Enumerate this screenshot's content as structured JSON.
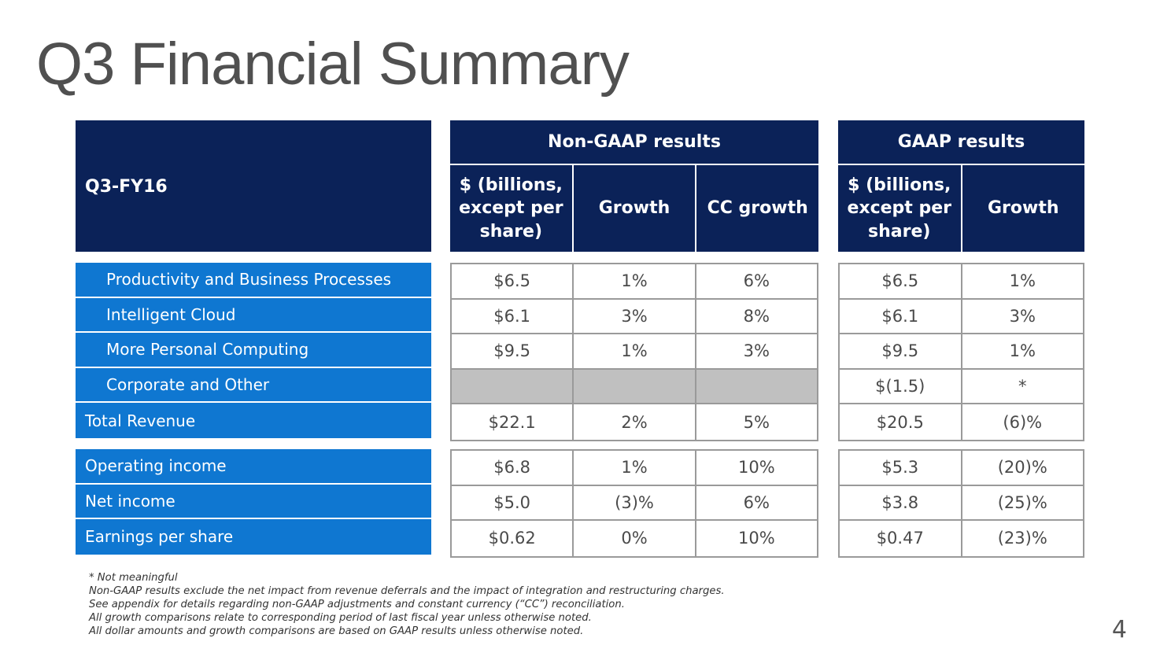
{
  "title": "Q3 Financial Summary",
  "header": {
    "period": "Q3-FY16",
    "non_gaap": {
      "title": "Non-GAAP results",
      "columns": [
        "$ (billions, except per share)",
        "Growth",
        "CC growth"
      ]
    },
    "gaap": {
      "title": "GAAP results",
      "columns": [
        "$ (billions, except per share)",
        "Growth"
      ]
    }
  },
  "revenue_rows": [
    {
      "label": "Productivity and Business Processes",
      "non_gaap": [
        "$6.5",
        "1%",
        "6%"
      ],
      "gaap": [
        "$6.5",
        "1%"
      ]
    },
    {
      "label": "Intelligent Cloud",
      "non_gaap": [
        "$6.1",
        "3%",
        "8%"
      ],
      "gaap": [
        "$6.1",
        "3%"
      ]
    },
    {
      "label": "More Personal Computing",
      "non_gaap": [
        "$9.5",
        "1%",
        "3%"
      ],
      "gaap": [
        "$9.5",
        "1%"
      ]
    },
    {
      "label": "Corporate and Other",
      "non_gaap": [
        "",
        "",
        ""
      ],
      "gaap": [
        "$(1.5)",
        "*"
      ]
    },
    {
      "label": "Total Revenue",
      "non_gaap": [
        "$22.1",
        "2%",
        "5%"
      ],
      "gaap": [
        "$20.5",
        "(6)%"
      ]
    }
  ],
  "income_rows": [
    {
      "label": "Operating income",
      "non_gaap": [
        "$6.8",
        "1%",
        "10%"
      ],
      "gaap": [
        "$5.3",
        "(20)%"
      ]
    },
    {
      "label": "Net income",
      "non_gaap": [
        "$5.0",
        "(3)%",
        "6%"
      ],
      "gaap": [
        "$3.8",
        "(25)%"
      ]
    },
    {
      "label": "Earnings per share",
      "non_gaap": [
        "$0.62",
        "0%",
        "10%"
      ],
      "gaap": [
        "$0.47",
        "(23)%"
      ]
    }
  ],
  "footnotes": [
    "* Not meaningful",
    "Non-GAAP results exclude the net impact from revenue deferrals and the impact of integration and restructuring charges.",
    "See appendix for details regarding non-GAAP adjustments and constant currency (“CC”) reconciliation.",
    "All growth comparisons relate to corresponding period of last fiscal year unless otherwise noted.",
    "All dollar amounts and growth comparisons are based on GAAP results unless otherwise noted."
  ],
  "page_number": "4",
  "colors": {
    "header_navy": "#0b2258",
    "row_label_blue": "#0f77d1",
    "shaded_cell": "#c0c0c0",
    "grid_border": "#9a9a9a"
  }
}
